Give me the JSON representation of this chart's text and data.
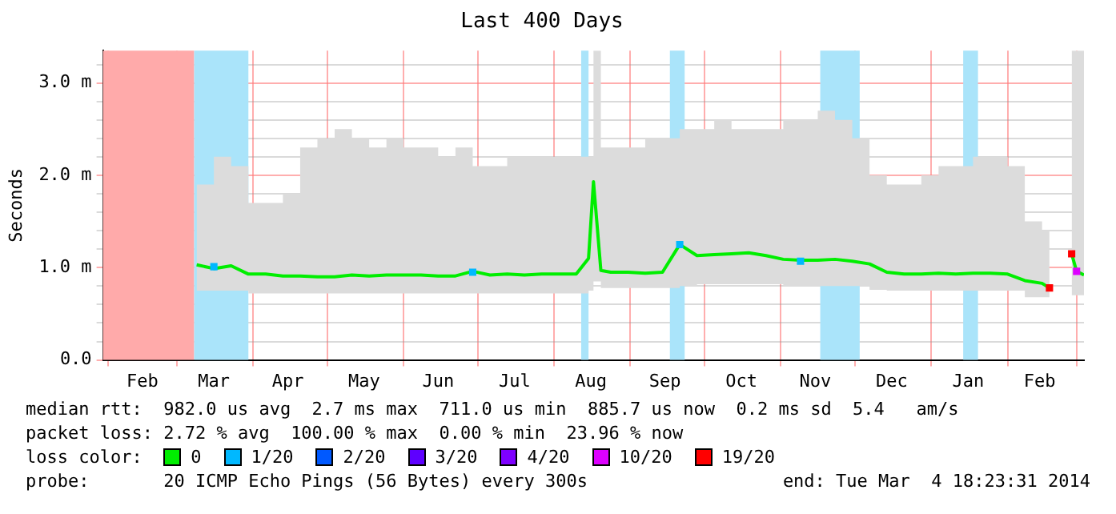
{
  "chart_data": {
    "type": "line",
    "title": "Last 400 Days",
    "ylabel": "Seconds",
    "legend_title": "loss color:",
    "legend": "bottom",
    "grid": true,
    "marker": "none",
    "xlim": [
      "2013-01-30",
      "2014-03-04"
    ],
    "xticks": [
      {
        "value": "2013-02-01",
        "label": null
      },
      {
        "value": "2013-02-15",
        "label": "Feb"
      },
      {
        "value": "2013-03-01",
        "label": null
      },
      {
        "value": "2013-03-16",
        "label": "Mar"
      },
      {
        "value": "2013-04-01",
        "label": null
      },
      {
        "value": "2013-04-15",
        "label": "Apr"
      },
      {
        "value": "2013-05-01",
        "label": null
      },
      {
        "value": "2013-05-16",
        "label": "May"
      },
      {
        "value": "2013-06-01",
        "label": null
      },
      {
        "value": "2013-06-15",
        "label": "Jun"
      },
      {
        "value": "2013-07-01",
        "label": null
      },
      {
        "value": "2013-07-16",
        "label": "Jul"
      },
      {
        "value": "2013-08-01",
        "label": null
      },
      {
        "value": "2013-08-16",
        "label": "Aug"
      },
      {
        "value": "2013-09-01",
        "label": null
      },
      {
        "value": "2013-09-15",
        "label": "Sep"
      },
      {
        "value": "2013-10-01",
        "label": null
      },
      {
        "value": "2013-10-16",
        "label": "Oct"
      },
      {
        "value": "2013-11-01",
        "label": null
      },
      {
        "value": "2013-11-15",
        "label": "Nov"
      },
      {
        "value": "2013-12-01",
        "label": null
      },
      {
        "value": "2013-12-16",
        "label": "Dec"
      },
      {
        "value": "2014-01-01",
        "label": null
      },
      {
        "value": "2014-01-16",
        "label": "Jan"
      },
      {
        "value": "2014-02-01",
        "label": null
      },
      {
        "value": "2014-02-14",
        "label": "Feb"
      },
      {
        "value": "2014-03-01",
        "label": null
      }
    ],
    "ylim": [
      0,
      3.35
    ],
    "yticks": [
      {
        "value": 0,
        "label": "0.0"
      },
      {
        "value": 0.2,
        "label": null
      },
      {
        "value": 0.4,
        "label": null
      },
      {
        "value": 0.6,
        "label": null
      },
      {
        "value": 0.8,
        "label": null
      },
      {
        "value": 1,
        "label": "1.0 m"
      },
      {
        "value": 1.2,
        "label": null
      },
      {
        "value": 1.4,
        "label": null
      },
      {
        "value": 1.6,
        "label": null
      },
      {
        "value": 1.8,
        "label": null
      },
      {
        "value": 2,
        "label": "2.0 m"
      },
      {
        "value": 2.2,
        "label": null
      },
      {
        "value": 2.4,
        "label": null
      },
      {
        "value": 2.6,
        "label": null
      },
      {
        "value": 2.8,
        "label": null
      },
      {
        "value": 3,
        "label": "3.0 m"
      },
      {
        "value": 3.2,
        "label": null
      }
    ],
    "bands": [
      {
        "axis": "x",
        "from": "2013-01-30",
        "to": "2013-03-08",
        "color": "#ffaaaa"
      },
      {
        "axis": "x",
        "from": "2013-03-08",
        "to": "2013-03-30",
        "color": "#aae4fa"
      },
      {
        "axis": "x",
        "from": "2013-08-12",
        "to": "2013-08-15",
        "color": "#aae4fa"
      },
      {
        "axis": "x",
        "from": "2013-09-17",
        "to": "2013-09-23",
        "color": "#aae4fa"
      },
      {
        "axis": "x",
        "from": "2013-11-17",
        "to": "2013-12-03",
        "color": "#aae4fa"
      },
      {
        "axis": "x",
        "from": "2014-01-14",
        "to": "2014-01-20",
        "color": "#aae4fa"
      }
    ],
    "series": [
      {
        "name": "0",
        "color": "#00ee00",
        "x": [
          "2013-03-09",
          "2013-03-16",
          "2013-03-23",
          "2013-03-30",
          "2013-04-06",
          "2013-04-13",
          "2013-04-20",
          "2013-04-27",
          "2013-05-04",
          "2013-05-11",
          "2013-05-18",
          "2013-05-25",
          "2013-06-01",
          "2013-06-08",
          "2013-06-15",
          "2013-06-22",
          "2013-06-29",
          "2013-07-06",
          "2013-07-13",
          "2013-07-20",
          "2013-07-27",
          "2013-08-03",
          "2013-08-10",
          "2013-08-15",
          "2013-08-17",
          "2013-08-20",
          "2013-08-24",
          "2013-08-31",
          "2013-09-07",
          "2013-09-14",
          "2013-09-21",
          "2013-09-28",
          "2013-10-05",
          "2013-10-12",
          "2013-10-19",
          "2013-10-26",
          "2013-11-02",
          "2013-11-09",
          "2013-11-16",
          "2013-11-23",
          "2013-11-30",
          "2013-12-07",
          "2013-12-14",
          "2013-12-21",
          "2013-12-28",
          "2014-01-04",
          "2014-01-11",
          "2014-01-18",
          "2014-01-25",
          "2014-02-01",
          "2014-02-08",
          "2014-02-15",
          "2014-02-18",
          "2014-02-22",
          "2014-02-27",
          "2014-03-01",
          "2014-03-04"
        ],
        "values": [
          1.03,
          0.99,
          1.02,
          0.93,
          0.93,
          0.91,
          0.91,
          0.9,
          0.9,
          0.92,
          0.91,
          0.92,
          0.92,
          0.92,
          0.91,
          0.91,
          0.96,
          0.92,
          0.93,
          0.92,
          0.93,
          0.93,
          0.93,
          1.1,
          1.93,
          0.97,
          0.95,
          0.95,
          0.94,
          0.95,
          1.25,
          1.13,
          1.14,
          1.15,
          1.16,
          1.13,
          1.09,
          1.08,
          1.08,
          1.09,
          1.07,
          1.04,
          0.95,
          0.93,
          0.93,
          0.94,
          0.93,
          0.94,
          0.94,
          0.93,
          0.86,
          0.83,
          0.78,
          null,
          1.15,
          0.96,
          0.92
        ],
        "lower": [
          0.75,
          0.75,
          0.75,
          0.72,
          0.72,
          0.72,
          0.72,
          0.72,
          0.72,
          0.72,
          0.72,
          0.72,
          0.72,
          0.72,
          0.72,
          0.72,
          0.72,
          0.72,
          0.72,
          0.72,
          0.72,
          0.72,
          0.72,
          0.75,
          0.85,
          0.78,
          0.78,
          0.78,
          0.78,
          0.78,
          0.8,
          0.82,
          0.82,
          0.82,
          0.82,
          0.82,
          0.8,
          0.8,
          0.8,
          0.8,
          0.8,
          0.76,
          0.75,
          0.75,
          0.75,
          0.75,
          0.75,
          0.75,
          0.75,
          0.75,
          0.68,
          0.68,
          0.68,
          null,
          0.7,
          0.7,
          0.7
        ],
        "upper": [
          1.9,
          2.2,
          2.1,
          1.7,
          1.7,
          1.8,
          2.3,
          2.4,
          2.5,
          2.4,
          2.3,
          2.4,
          2.3,
          2.3,
          2.2,
          2.3,
          2.1,
          2.1,
          2.2,
          2.2,
          2.2,
          2.2,
          2.2,
          2.2,
          3.35,
          2.3,
          2.3,
          2.3,
          2.4,
          2.4,
          2.5,
          2.5,
          2.6,
          2.5,
          2.5,
          2.5,
          2.6,
          2.6,
          2.7,
          2.6,
          2.4,
          2.0,
          1.9,
          1.9,
          2.0,
          2.1,
          2.1,
          2.2,
          2.2,
          2.1,
          1.5,
          1.4,
          1.4,
          null,
          3.35,
          3.35,
          3.35
        ]
      },
      {
        "name": "1/20",
        "type": "scatter",
        "marker": "square",
        "color": "#00b8ff",
        "x": [
          "2013-03-16",
          "2013-06-29",
          "2013-09-21",
          "2013-11-09"
        ],
        "values": [
          1.01,
          0.95,
          1.25,
          1.07
        ]
      },
      {
        "name": "2/20",
        "type": "scatter",
        "marker": "square",
        "color": "#0059ff"
      },
      {
        "name": "3/20",
        "type": "scatter",
        "marker": "square",
        "color": "#5e00ff"
      },
      {
        "name": "4/20",
        "type": "scatter",
        "marker": "square",
        "color": "#7e00ff"
      },
      {
        "name": "10/20",
        "type": "scatter",
        "marker": "square",
        "color": "#dd00ff",
        "x": [
          "2014-03-01"
        ],
        "values": [
          0.96
        ]
      },
      {
        "name": "19/20",
        "type": "scatter",
        "marker": "square",
        "color": "#ff0000",
        "x": [
          "2014-02-18",
          "2014-02-27"
        ],
        "values": [
          0.78,
          1.15
        ]
      }
    ],
    "annotations": [
      "median rtt:  982.0 us avg  2.7 ms max  711.0 us min  885.7 us now  0.2 ms sd  5.4   am/s",
      "packet loss: 2.72 % avg  100.00 % max  0.00 % min  23.96 % now",
      "probe:       20 ICMP Echo Pings (56 Bytes) every 300s",
      "end: Tue Mar  4 18:23:31 2014"
    ]
  }
}
